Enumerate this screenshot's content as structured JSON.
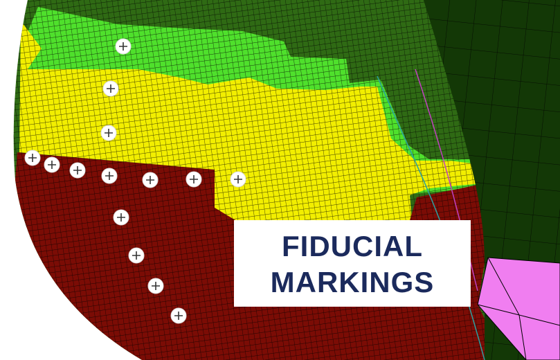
{
  "label": {
    "lines": [
      "FIDUCIAL",
      "MARKINGS"
    ]
  }
}
